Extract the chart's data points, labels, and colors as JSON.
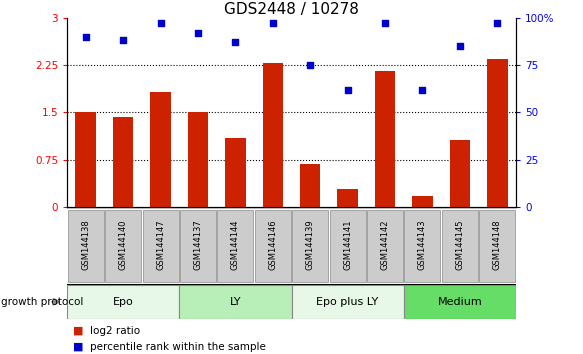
{
  "title": "GDS2448 / 10278",
  "samples": [
    "GSM144138",
    "GSM144140",
    "GSM144147",
    "GSM144137",
    "GSM144144",
    "GSM144146",
    "GSM144139",
    "GSM144141",
    "GSM144142",
    "GSM144143",
    "GSM144145",
    "GSM144148"
  ],
  "log2_ratio": [
    1.5,
    1.42,
    1.82,
    1.5,
    1.1,
    2.28,
    0.68,
    0.28,
    2.15,
    0.18,
    1.07,
    2.35
  ],
  "percentile_rank": [
    90,
    88,
    97,
    92,
    87,
    97,
    75,
    62,
    97,
    62,
    85,
    97
  ],
  "groups": [
    {
      "label": "Epo",
      "start": 0,
      "end": 3,
      "color": "#e8f8e8"
    },
    {
      "label": "LY",
      "start": 3,
      "end": 6,
      "color": "#b8eeb8"
    },
    {
      "label": "Epo plus LY",
      "start": 6,
      "end": 9,
      "color": "#e8f8e8"
    },
    {
      "label": "Medium",
      "start": 9,
      "end": 12,
      "color": "#66dd66"
    }
  ],
  "group_label": "growth protocol",
  "bar_color": "#cc2200",
  "dot_color": "#0000cc",
  "ylim_left": [
    0,
    3.0
  ],
  "ylim_right": [
    0,
    100
  ],
  "yticks_left": [
    0,
    0.75,
    1.5,
    2.25,
    3.0
  ],
  "ytick_labels_left": [
    "0",
    "0.75",
    "1.5",
    "2.25",
    "3"
  ],
  "yticks_right": [
    0,
    25,
    50,
    75,
    100
  ],
  "ytick_labels_right": [
    "0",
    "25",
    "50",
    "75",
    "100%"
  ],
  "hlines": [
    0.75,
    1.5,
    2.25
  ],
  "legend_items": [
    {
      "label": "log2 ratio",
      "color": "#cc2200"
    },
    {
      "label": "percentile rank within the sample",
      "color": "#0000cc"
    }
  ],
  "bg_color": "#ffffff",
  "sample_box_color": "#cccccc",
  "sample_box_edge": "#888888",
  "title_fontsize": 11,
  "bar_width": 0.55
}
